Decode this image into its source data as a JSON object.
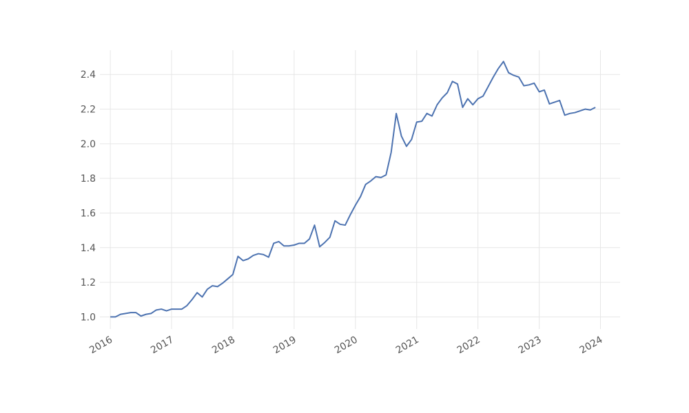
{
  "chart_data": {
    "type": "line",
    "x": [
      2016,
      2016.0833,
      2016.1667,
      2016.25,
      2016.3333,
      2016.4167,
      2016.5,
      2016.5833,
      2016.6667,
      2016.75,
      2016.8333,
      2016.9167,
      2017,
      2017.0833,
      2017.1667,
      2017.25,
      2017.3333,
      2017.4167,
      2017.5,
      2017.5833,
      2017.6667,
      2017.75,
      2017.8333,
      2017.9167,
      2018,
      2018.0833,
      2018.1667,
      2018.25,
      2018.3333,
      2018.4167,
      2018.5,
      2018.5833,
      2018.6667,
      2018.75,
      2018.8333,
      2018.9167,
      2019,
      2019.0833,
      2019.1667,
      2019.25,
      2019.3333,
      2019.4167,
      2019.5,
      2019.5833,
      2019.6667,
      2019.75,
      2019.8333,
      2019.9167,
      2020,
      2020.0833,
      2020.1667,
      2020.25,
      2020.3333,
      2020.4167,
      2020.5,
      2020.5833,
      2020.6667,
      2020.75,
      2020.8333,
      2020.9167,
      2021,
      2021.0833,
      2021.1667,
      2021.25,
      2021.3333,
      2021.4167,
      2021.5,
      2021.5833,
      2021.6667,
      2021.75,
      2021.8333,
      2021.9167,
      2022,
      2022.0833,
      2022.1667,
      2022.25,
      2022.3333,
      2022.4167,
      2022.5,
      2022.5833,
      2022.6667,
      2022.75,
      2022.8333,
      2022.9167,
      2023,
      2023.0833,
      2023.1667,
      2023.25,
      2023.3333,
      2023.4167,
      2023.5,
      2023.5833,
      2023.6667,
      2023.75,
      2023.8333,
      2023.9167
    ],
    "series": [
      {
        "color": "#4c72b0",
        "values": [
          1.0,
          1.0,
          1.015,
          1.02,
          1.025,
          1.025,
          1.005,
          1.015,
          1.02,
          1.04,
          1.045,
          1.035,
          1.045,
          1.045,
          1.045,
          1.065,
          1.1,
          1.14,
          1.115,
          1.16,
          1.18,
          1.175,
          1.195,
          1.22,
          1.245,
          1.35,
          1.325,
          1.335,
          1.355,
          1.365,
          1.36,
          1.345,
          1.425,
          1.435,
          1.41,
          1.41,
          1.415,
          1.425,
          1.425,
          1.45,
          1.53,
          1.405,
          1.43,
          1.46,
          1.555,
          1.535,
          1.53,
          1.59,
          1.645,
          1.695,
          1.765,
          1.785,
          1.81,
          1.805,
          1.82,
          1.95,
          2.175,
          2.045,
          1.985,
          2.025,
          2.125,
          2.13,
          2.175,
          2.16,
          2.225,
          2.265,
          2.295,
          2.36,
          2.345,
          2.21,
          2.26,
          2.225,
          2.26,
          2.275,
          2.33,
          2.385,
          2.435,
          2.475,
          2.41,
          2.395,
          2.385,
          2.335,
          2.34,
          2.35,
          2.3,
          2.31,
          2.23,
          2.24,
          2.25,
          2.165,
          2.175,
          2.18,
          2.19,
          2.2,
          2.195,
          2.21
        ]
      }
    ],
    "xlim": [
      2015.83,
      2024.32
    ],
    "xticks": [
      2016,
      2017,
      2018,
      2019,
      2020,
      2021,
      2022,
      2023,
      2024
    ],
    "ylim": [
      0.93,
      2.54
    ],
    "yticks": [
      {
        "value": 1.0,
        "label": "1.0"
      },
      {
        "value": 1.2,
        "label": "1.2"
      },
      {
        "value": 1.4,
        "label": "1.4"
      },
      {
        "value": 1.6,
        "label": "1.6"
      },
      {
        "value": 1.8,
        "label": "1.8"
      },
      {
        "value": 2.0,
        "label": "2.0"
      },
      {
        "value": 2.2,
        "label": "2.2"
      },
      {
        "value": 2.4,
        "label": "2.4"
      }
    ],
    "grid": true
  }
}
